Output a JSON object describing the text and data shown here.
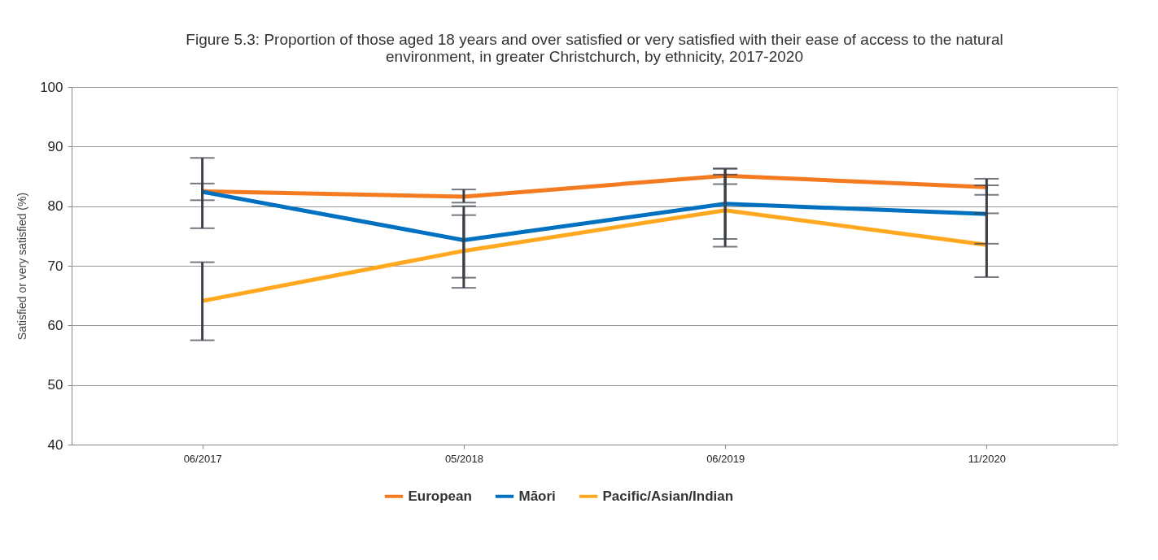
{
  "chart_data": {
    "type": "line",
    "title": [
      "Figure 5.3: Proportion of those aged 18 years and over satisfied or very satisfied with their ease of access to the natural",
      "environment, in greater Christchurch, by ethnicity, 2017-2020"
    ],
    "ylabel": "Satisfied or very satisfied (%)",
    "categories": [
      "06/2017",
      "05/2018",
      "06/2019",
      "11/2020"
    ],
    "series": [
      {
        "name": "European",
        "color": "#f47b20",
        "values": [
          82.5,
          81.6,
          85.1,
          83.2
        ],
        "errors": [
          [
            81.0,
            83.8
          ],
          [
            80.6,
            82.8
          ],
          [
            83.7,
            86.3
          ],
          [
            81.9,
            84.6
          ]
        ]
      },
      {
        "name": "Māori",
        "color": "#0070c0",
        "values": [
          82.4,
          74.3,
          80.4,
          78.7
        ],
        "errors": [
          [
            76.3,
            88.1
          ],
          [
            68.0,
            80.0
          ],
          [
            74.5,
            86.3
          ],
          [
            73.7,
            83.5
          ]
        ]
      },
      {
        "name": "Pacific/Asian/Indian",
        "color": "#ffa820",
        "values": [
          64.1,
          72.5,
          79.3,
          73.5
        ],
        "errors": [
          [
            57.5,
            70.6
          ],
          [
            66.3,
            78.5
          ],
          [
            73.2,
            85.3
          ],
          [
            68.1,
            78.8
          ]
        ]
      }
    ],
    "ylim": [
      40,
      100
    ],
    "yticks": [
      40,
      50,
      60,
      70,
      80,
      90,
      100
    ],
    "grid": "y",
    "legend": "bottom",
    "marker": "none",
    "line_style": "solid"
  }
}
